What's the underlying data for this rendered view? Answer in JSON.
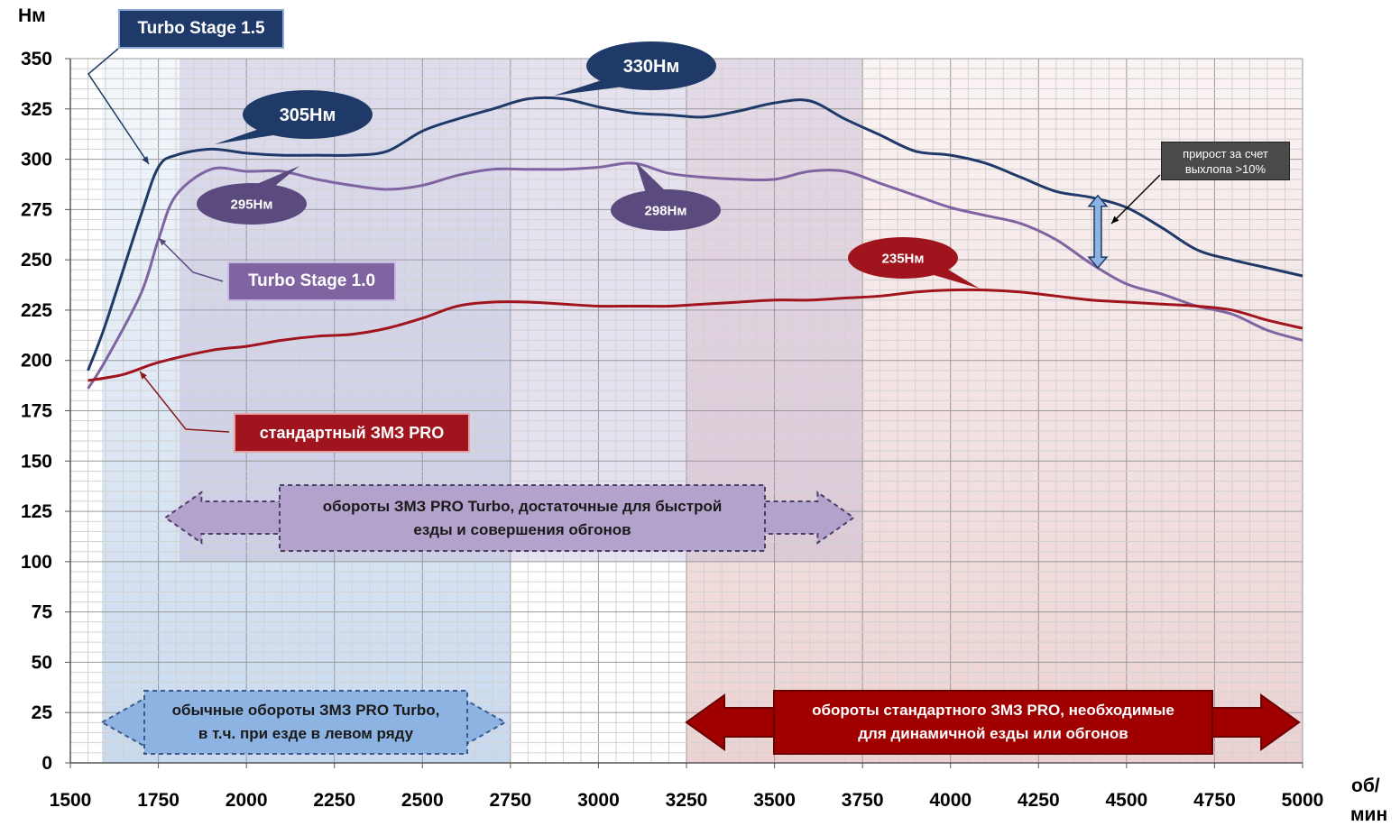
{
  "chart_data": {
    "type": "line",
    "y_unit": "Нм",
    "x_unit_line1": "об/",
    "x_unit_line2": "мин",
    "xlim": [
      1500,
      5000
    ],
    "ylim": [
      0,
      350
    ],
    "x_ticks": [
      1500,
      1750,
      2000,
      2250,
      2500,
      2750,
      3000,
      3250,
      3500,
      3750,
      4000,
      4250,
      4500,
      4750,
      5000
    ],
    "y_ticks": [
      0,
      25,
      50,
      75,
      100,
      125,
      150,
      175,
      200,
      225,
      250,
      275,
      300,
      325,
      350
    ],
    "grid": true,
    "series": [
      {
        "name": "Turbo Stage 1.5",
        "color": "#1f3a68",
        "points": [
          [
            1550,
            195
          ],
          [
            1600,
            218
          ],
          [
            1700,
            272
          ],
          [
            1750,
            296
          ],
          [
            1800,
            302
          ],
          [
            1900,
            305
          ],
          [
            2000,
            303
          ],
          [
            2100,
            302
          ],
          [
            2200,
            302
          ],
          [
            2300,
            302
          ],
          [
            2400,
            304
          ],
          [
            2500,
            314
          ],
          [
            2600,
            320
          ],
          [
            2700,
            325
          ],
          [
            2800,
            330
          ],
          [
            2900,
            330
          ],
          [
            3000,
            326
          ],
          [
            3100,
            323
          ],
          [
            3200,
            322
          ],
          [
            3300,
            321
          ],
          [
            3400,
            324
          ],
          [
            3500,
            328
          ],
          [
            3600,
            329
          ],
          [
            3700,
            320
          ],
          [
            3800,
            312
          ],
          [
            3900,
            304
          ],
          [
            4000,
            302
          ],
          [
            4100,
            298
          ],
          [
            4200,
            291
          ],
          [
            4300,
            284
          ],
          [
            4400,
            281
          ],
          [
            4500,
            276
          ],
          [
            4600,
            266
          ],
          [
            4700,
            255
          ],
          [
            4800,
            250
          ],
          [
            4900,
            246
          ],
          [
            5000,
            242
          ]
        ]
      },
      {
        "name": "Turbo Stage 1.0",
        "color": "#8064a2",
        "points": [
          [
            1550,
            186
          ],
          [
            1600,
            200
          ],
          [
            1700,
            233
          ],
          [
            1750,
            260
          ],
          [
            1800,
            282
          ],
          [
            1900,
            295
          ],
          [
            2000,
            294
          ],
          [
            2100,
            294
          ],
          [
            2200,
            290
          ],
          [
            2300,
            287
          ],
          [
            2400,
            285
          ],
          [
            2500,
            287
          ],
          [
            2600,
            292
          ],
          [
            2700,
            295
          ],
          [
            2800,
            295
          ],
          [
            2900,
            295
          ],
          [
            3000,
            296
          ],
          [
            3100,
            298
          ],
          [
            3200,
            293
          ],
          [
            3300,
            291
          ],
          [
            3400,
            290
          ],
          [
            3500,
            290
          ],
          [
            3600,
            294
          ],
          [
            3700,
            294
          ],
          [
            3800,
            288
          ],
          [
            3900,
            282
          ],
          [
            4000,
            276
          ],
          [
            4100,
            272
          ],
          [
            4200,
            268
          ],
          [
            4300,
            260
          ],
          [
            4400,
            248
          ],
          [
            4500,
            238
          ],
          [
            4600,
            233
          ],
          [
            4700,
            227
          ],
          [
            4800,
            223
          ],
          [
            4900,
            215
          ],
          [
            5000,
            210
          ]
        ]
      },
      {
        "name": "стандартный ЗМЗ PRO",
        "color": "#a0141e",
        "points": [
          [
            1550,
            190
          ],
          [
            1650,
            193
          ],
          [
            1750,
            199
          ],
          [
            1900,
            205
          ],
          [
            2000,
            207
          ],
          [
            2100,
            210
          ],
          [
            2200,
            212
          ],
          [
            2300,
            213
          ],
          [
            2400,
            216
          ],
          [
            2500,
            221
          ],
          [
            2600,
            227
          ],
          [
            2700,
            229
          ],
          [
            2800,
            229
          ],
          [
            2900,
            228
          ],
          [
            3000,
            227
          ],
          [
            3100,
            227
          ],
          [
            3200,
            227
          ],
          [
            3300,
            228
          ],
          [
            3400,
            229
          ],
          [
            3500,
            230
          ],
          [
            3600,
            230
          ],
          [
            3700,
            231
          ],
          [
            3800,
            232
          ],
          [
            3900,
            234
          ],
          [
            4000,
            235
          ],
          [
            4100,
            235
          ],
          [
            4200,
            234
          ],
          [
            4300,
            232
          ],
          [
            4400,
            230
          ],
          [
            4500,
            229
          ],
          [
            4600,
            228
          ],
          [
            4700,
            227
          ],
          [
            4800,
            225
          ],
          [
            4900,
            220
          ],
          [
            5000,
            216
          ]
        ]
      }
    ],
    "annotations": {
      "s15_peak1": "305Нм",
      "s15_peak2": "330Нм",
      "s10_peak1": "295Нм",
      "s10_peak2": "298Нм",
      "std_peak": "235Нм",
      "gain_note": "прирост за счет\nвыхлопа >10%"
    },
    "zones": {
      "turbo_normal": "обычные обороты ЗМЗ PRO Turbo,\nв т.ч. при езде в левом ряду",
      "turbo_fast": "обороты ЗМЗ PRO Turbo, достаточные  для быстрой\nезды и совершения  обгонов",
      "standard": "обороты стандартного ЗМЗ PRO, необходимые\nдля динамичной езды или обгонов"
    }
  }
}
